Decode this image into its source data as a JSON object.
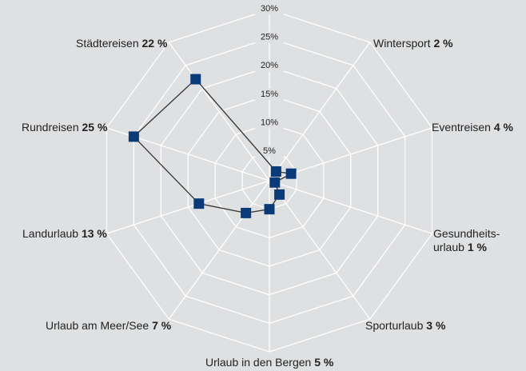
{
  "chart_data": {
    "type": "radar",
    "categories": [
      "Wintersport",
      "Eventreisen",
      "Gesundheits-\nurlaub",
      "Sporturlaub",
      "Urlaub in den Bergen",
      "Urlaub am Meer/See",
      "Landurlaub",
      "Rundreisen",
      "Städtereisen"
    ],
    "values": [
      2,
      4,
      1,
      3,
      5,
      7,
      13,
      25,
      22
    ],
    "value_labels": [
      "2 %",
      "4 %",
      "1 %",
      "3 %",
      "5 %",
      "7 %",
      "13 %",
      "25 %",
      "22 %"
    ],
    "color": "#0b3a78",
    "line_color": "#333333",
    "ylim": [
      0,
      30
    ],
    "yticks": [
      {
        "value": 5,
        "label": "5%"
      },
      {
        "value": 10,
        "label": "10%"
      },
      {
        "value": 15,
        "label": "15%"
      },
      {
        "value": 20,
        "label": "20%"
      },
      {
        "value": 25,
        "label": "25%"
      },
      {
        "value": 30,
        "label": "30%"
      }
    ],
    "grid": true
  }
}
